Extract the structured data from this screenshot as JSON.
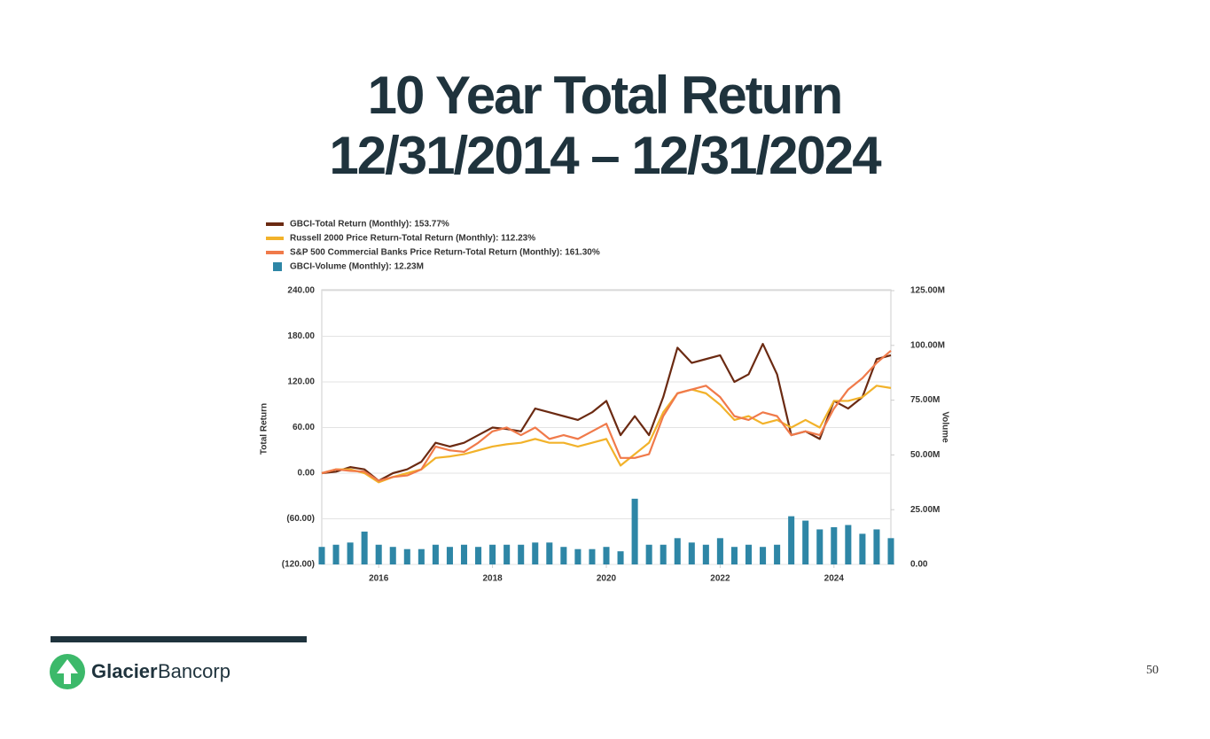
{
  "slide": {
    "title_line1": "10 Year Total Return",
    "title_line2": "12/31/2014 – 12/31/2024",
    "logo_bold": "Glacier",
    "logo_light": "Bancorp",
    "page_number": "50"
  },
  "chart_data": {
    "type": "line",
    "ylabel": "Total Return",
    "y2label": "Volume",
    "x": [
      2015,
      2015.25,
      2015.5,
      2015.75,
      2016,
      2016.25,
      2016.5,
      2016.75,
      2017,
      2017.25,
      2017.5,
      2017.75,
      2018,
      2018.25,
      2018.5,
      2018.75,
      2019,
      2019.25,
      2019.5,
      2019.75,
      2020,
      2020.25,
      2020.5,
      2020.75,
      2021,
      2021.25,
      2021.5,
      2021.75,
      2022,
      2022.25,
      2022.5,
      2022.75,
      2023,
      2023.25,
      2023.5,
      2023.75,
      2024,
      2024.25,
      2024.5,
      2024.75,
      2025
    ],
    "series": [
      {
        "name": "GBCI-Total Return (Monthly): 153.77%",
        "color": "#6b2a12",
        "values": [
          0,
          2,
          8,
          5,
          -10,
          0,
          5,
          15,
          40,
          35,
          40,
          50,
          60,
          58,
          55,
          85,
          80,
          75,
          70,
          80,
          95,
          50,
          75,
          50,
          100,
          165,
          145,
          150,
          155,
          120,
          130,
          170,
          130,
          50,
          55,
          45,
          95,
          85,
          100,
          150,
          155
        ]
      },
      {
        "name": "Russell 2000 Price Return-Total Return (Monthly): 112.23%",
        "color": "#f2b22a",
        "values": [
          0,
          5,
          5,
          0,
          -12,
          -5,
          0,
          5,
          20,
          22,
          25,
          30,
          35,
          38,
          40,
          45,
          40,
          40,
          35,
          40,
          45,
          10,
          25,
          40,
          80,
          105,
          110,
          105,
          90,
          70,
          75,
          65,
          70,
          60,
          70,
          60,
          95,
          95,
          100,
          115,
          112
        ]
      },
      {
        "name": "S&P 500 Commercial Banks Price Return-Total Return (Monthly): 161.30%",
        "color": "#f07a4a",
        "values": [
          0,
          5,
          3,
          2,
          -10,
          -5,
          -3,
          5,
          35,
          30,
          28,
          40,
          55,
          60,
          50,
          60,
          45,
          50,
          45,
          55,
          65,
          20,
          20,
          25,
          75,
          105,
          110,
          115,
          100,
          75,
          70,
          80,
          75,
          50,
          55,
          50,
          85,
          110,
          125,
          145,
          161
        ]
      },
      {
        "name": "GBCI-Volume (Monthly): 12.23M",
        "color": "#2e86a6",
        "type": "bar",
        "axis": "y2",
        "values": [
          8,
          9,
          10,
          15,
          9,
          8,
          7,
          7,
          9,
          8,
          9,
          8,
          9,
          9,
          9,
          10,
          10,
          8,
          7,
          7,
          8,
          6,
          30,
          9,
          9,
          12,
          10,
          9,
          12,
          8,
          9,
          8,
          9,
          22,
          20,
          16,
          17,
          18,
          14,
          16,
          12
        ]
      }
    ],
    "xlim": [
      2015,
      2025
    ],
    "xticks": [
      2016,
      2018,
      2020,
      2022,
      2024
    ],
    "ylim": [
      -120,
      240
    ],
    "yticks": [
      {
        "value": -120,
        "label": "(120.00)"
      },
      {
        "value": -60,
        "label": "(60.00)"
      },
      {
        "value": 0,
        "label": "0.00"
      },
      {
        "value": 60,
        "label": "60.00"
      },
      {
        "value": 120,
        "label": "120.00"
      },
      {
        "value": 180,
        "label": "180.00"
      },
      {
        "value": 240,
        "label": "240.00"
      }
    ],
    "y2lim": [
      0,
      125
    ],
    "y2ticks": [
      {
        "value": 0,
        "label": "0.00"
      },
      {
        "value": 25,
        "label": "25.00M"
      },
      {
        "value": 50,
        "label": "50.00M"
      },
      {
        "value": 75,
        "label": "75.00M"
      },
      {
        "value": 100,
        "label": "100.00M"
      },
      {
        "value": 125,
        "label": "125.00M"
      }
    ],
    "grid": true
  }
}
